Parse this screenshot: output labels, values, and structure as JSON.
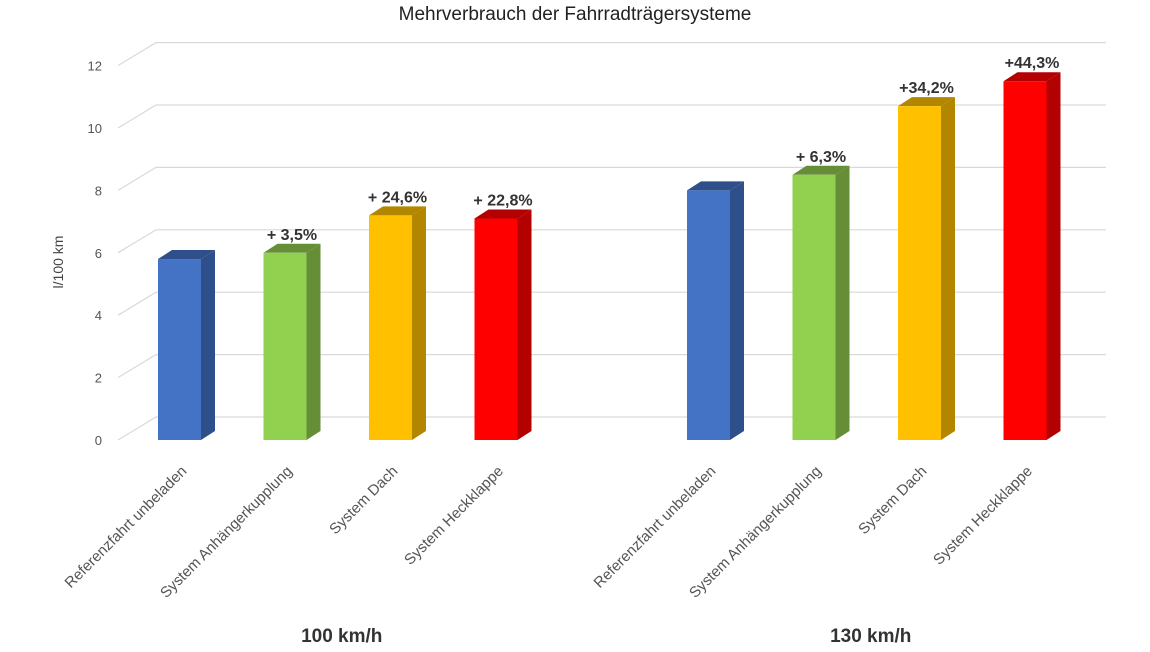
{
  "chart_data": {
    "type": "bar",
    "title": "Mehrverbrauch der Fahrradträgersysteme",
    "xlabel": "",
    "ylabel": "l/100 km",
    "ylim": [
      0,
      12
    ],
    "yticks": [
      0,
      2,
      4,
      6,
      8,
      10,
      12
    ],
    "grid": true,
    "groups": [
      {
        "label": "100 km/h",
        "categories": [
          "Referenzfahrt unbeladen",
          "System Anhängerkupplung",
          "System Dach",
          "System Heckklappe"
        ],
        "values": [
          5.8,
          6.0,
          7.2,
          7.1
        ],
        "annotations": [
          "",
          "+ 3,5%",
          "+ 24,6%",
          "+ 22,8%"
        ]
      },
      {
        "label": "130 km/h",
        "categories": [
          "Referenzfahrt unbeladen",
          "System Anhängerkupplung",
          "System Dach",
          "System Heckklappe"
        ],
        "values": [
          8.0,
          8.5,
          10.7,
          11.5
        ],
        "annotations": [
          "",
          "+ 6,3%",
          "+34,2%",
          "+44,3%"
        ]
      }
    ],
    "colors": [
      "#4472c4",
      "#92d050",
      "#ffc000",
      "#ff0000"
    ],
    "side_colors": [
      "#2f4f8a",
      "#658e37",
      "#b38600",
      "#b30000"
    ]
  }
}
